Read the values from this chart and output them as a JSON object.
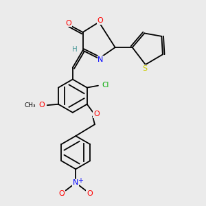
{
  "background_color": "#ebebeb",
  "atom_colors": {
    "O": "#FF0000",
    "N": "#0000FF",
    "S": "#CCCC00",
    "Cl": "#00AA00",
    "C": "#000000",
    "H": "#4a9999"
  },
  "figsize": [
    3.0,
    3.0
  ],
  "dpi": 100
}
